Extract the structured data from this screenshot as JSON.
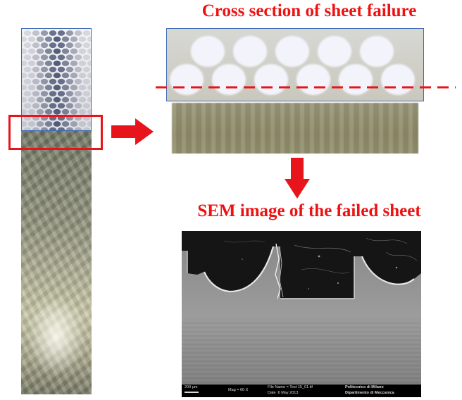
{
  "captions": {
    "cross_section": "Cross section of sheet failure",
    "sem_image": "SEM image of the failed sheet"
  },
  "sem_footer": {
    "scale_bar": "200 µm",
    "magnification": "Mag =  60 X",
    "file_name": "File Name = Test 15_01.tif",
    "date": "Date :6 May 2013",
    "institution_line1": "Politecnico di Milano",
    "institution_line2": "Dipartimento di Meccanica"
  },
  "colors": {
    "caption_red": "#ee1111",
    "highlight_red": "#e8141b",
    "frame_blue": "#3e6bb5"
  },
  "icons": {
    "arrow_right": "arrow-right-icon",
    "arrow_down": "arrow-down-icon"
  }
}
